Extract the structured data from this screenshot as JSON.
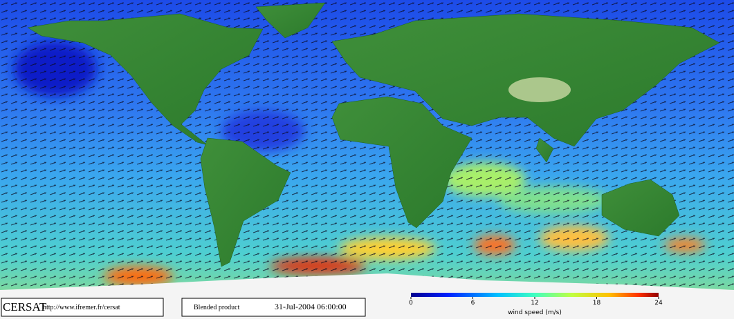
{
  "footer": {
    "brand": "CERSAT",
    "url": "http://www.ifremer.fr/cersat",
    "product": "Blended product",
    "date": "31-Jul-2004 06:00:00"
  },
  "colorbar": {
    "label": "wind speed (m/s)",
    "lim": [
      0,
      24
    ],
    "ticks": [
      0,
      6,
      12,
      18,
      24
    ]
  }
}
